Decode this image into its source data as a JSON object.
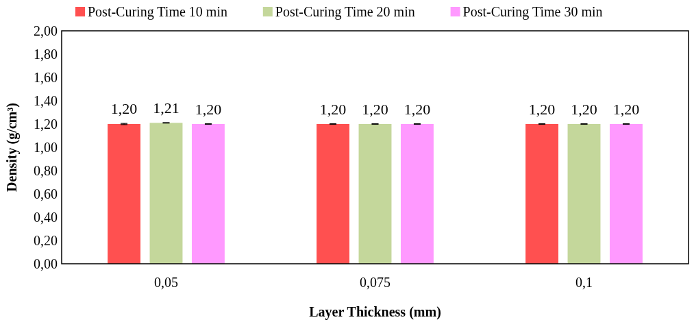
{
  "chart_data": {
    "type": "bar",
    "xlabel": "Layer Thickness (mm)",
    "ylabel": "Density (g/cm³)",
    "categories": [
      "0,05",
      "0,075",
      "0,1"
    ],
    "series": [
      {
        "name": "Post-Curing Time 10 min",
        "color": "#ff5050",
        "values": [
          1.2,
          1.2,
          1.2
        ],
        "errors": [
          0.005,
          0.002,
          0.002
        ],
        "value_labels": [
          "1,20",
          "1,20",
          "1,20"
        ]
      },
      {
        "name": "Post-Curing Time 20 min",
        "color": "#c4d79b",
        "values": [
          1.21,
          1.2,
          1.2
        ],
        "errors": [
          0.002,
          0.002,
          0.002
        ],
        "value_labels": [
          "1,21",
          "1,20",
          "1,20"
        ]
      },
      {
        "name": "Post-Curing Time 30 min",
        "color": "#ff99ff",
        "values": [
          1.2,
          1.2,
          1.2
        ],
        "errors": [
          0.002,
          0.002,
          0.002
        ],
        "value_labels": [
          "1,20",
          "1,20",
          "1,20"
        ]
      }
    ],
    "ylim": [
      0,
      2
    ],
    "yticks": [
      {
        "value": 0,
        "label": "0,00"
      },
      {
        "value": 0.2,
        "label": "0,20"
      },
      {
        "value": 0.4,
        "label": "0,40"
      },
      {
        "value": 0.6,
        "label": "0,60"
      },
      {
        "value": 0.8,
        "label": "0,80"
      },
      {
        "value": 1,
        "label": "1,00"
      },
      {
        "value": 1.2,
        "label": "1,20"
      },
      {
        "value": 1.4,
        "label": "1,40"
      },
      {
        "value": 1.6,
        "label": "1,60"
      },
      {
        "value": 1.8,
        "label": "1,80"
      },
      {
        "value": 2,
        "label": "2,00"
      }
    ],
    "legend": "top",
    "grid": false
  }
}
